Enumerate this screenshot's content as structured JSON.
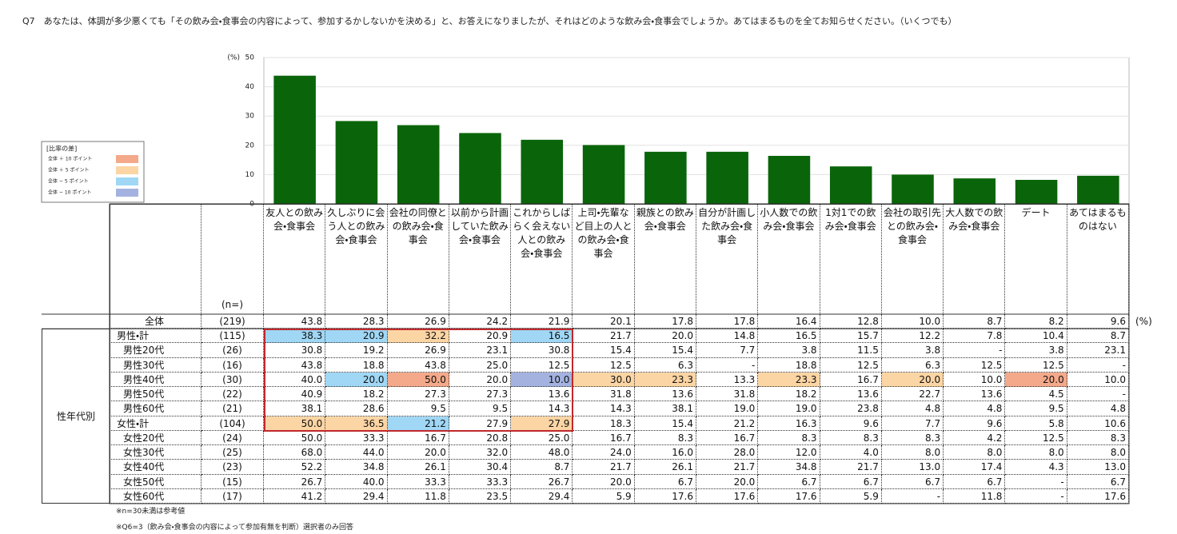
{
  "question": "Q7　あなたは、体調が多少悪くても「その飲み会・食事会の内容によって、参加するかしないかを決める」と、お答えになりましたが、それはどのような飲み会・食事会でしょうか。あてはまるものを全てお知らせください。（いくつでも）",
  "chart_data": {
    "type": "bar",
    "categories": [
      "友人との飲み会・食事会",
      "久しぶりに会う人との飲み会・食事会",
      "会社の同僚との飲み会・食事会",
      "以前から計画していた飲み会・食事会",
      "これからしばらく会えない人との飲み会・食事会",
      "上司・先輩など目上の人との飲み会・食事会",
      "親族との飲み会・食事会",
      "自分が計画した飲み会・食事会",
      "小人数での飲み会・食事会",
      "1対1での飲み会・食事会",
      "会社の取引先との飲み会・食事会",
      "大人数での飲み会・食事会",
      "デート",
      "あてはまるものはない"
    ],
    "values": [
      43.8,
      28.3,
      26.9,
      24.2,
      21.9,
      20.1,
      17.8,
      17.8,
      16.4,
      12.8,
      10.0,
      8.7,
      8.2,
      9.6
    ],
    "color": "#0a650a",
    "ylim": [
      0,
      50
    ],
    "yticks": [
      0,
      10,
      20,
      30,
      40,
      50
    ],
    "y_unit": "(%)",
    "grid": true
  },
  "legend": {
    "title": "[比率の差]",
    "items": [
      {
        "label": "全体 ＋ 10 ポイント",
        "color": "#f4a98a"
      },
      {
        "label": "全体 ＋ 5 ポイント",
        "color": "#fcd5a4"
      },
      {
        "label": "全体 − 5 ポイント",
        "color": "#9fd7f5"
      },
      {
        "label": "全体 − 10 ポイント",
        "color": "#a4b2e0"
      }
    ]
  },
  "table": {
    "n_header": "(n=)",
    "unit": "(%)",
    "overall": {
      "label": "全体",
      "n": "(219)",
      "values": [
        "43.8",
        "28.3",
        "26.9",
        "24.2",
        "21.9",
        "20.1",
        "17.8",
        "17.8",
        "16.4",
        "12.8",
        "10.0",
        "8.7",
        "8.2",
        "9.6"
      ]
    },
    "group_label": "性年代別",
    "groups": [
      {
        "total": {
          "label": "男性・計",
          "n": "(115)",
          "values": [
            "38.3",
            "20.9",
            "32.2",
            "20.9",
            "16.5",
            "21.7",
            "20.0",
            "14.8",
            "16.5",
            "15.7",
            "12.2",
            "7.8",
            "10.4",
            "8.7"
          ],
          "colors": [
            "#9fd7f5",
            "#9fd7f5",
            "#fcd5a4",
            null,
            "#9fd7f5",
            null,
            null,
            null,
            null,
            null,
            null,
            null,
            null,
            null
          ]
        },
        "rows": [
          {
            "label": "男性20代",
            "n": "(26)",
            "values": [
              "30.8",
              "19.2",
              "26.9",
              "23.1",
              "30.8",
              "15.4",
              "15.4",
              "7.7",
              "3.8",
              "11.5",
              "3.8",
              "-",
              "3.8",
              "23.1"
            ]
          },
          {
            "label": "男性30代",
            "n": "(16)",
            "values": [
              "43.8",
              "18.8",
              "43.8",
              "25.0",
              "12.5",
              "12.5",
              "6.3",
              "-",
              "18.8",
              "12.5",
              "6.3",
              "12.5",
              "12.5",
              "-"
            ]
          },
          {
            "label": "男性40代",
            "n": "(30)",
            "values": [
              "40.0",
              "20.0",
              "50.0",
              "20.0",
              "10.0",
              "30.0",
              "23.3",
              "13.3",
              "23.3",
              "16.7",
              "20.0",
              "10.0",
              "20.0",
              "10.0"
            ],
            "colors": [
              null,
              "#9fd7f5",
              "#f4a98a",
              null,
              "#a4b2e0",
              "#fcd5a4",
              "#fcd5a4",
              null,
              "#fcd5a4",
              null,
              "#fcd5a4",
              null,
              "#f4a98a",
              null
            ]
          },
          {
            "label": "男性50代",
            "n": "(22)",
            "values": [
              "40.9",
              "18.2",
              "27.3",
              "27.3",
              "13.6",
              "31.8",
              "13.6",
              "31.8",
              "18.2",
              "13.6",
              "22.7",
              "13.6",
              "4.5",
              "-"
            ]
          },
          {
            "label": "男性60代",
            "n": "(21)",
            "values": [
              "38.1",
              "28.6",
              "9.5",
              "9.5",
              "14.3",
              "14.3",
              "38.1",
              "19.0",
              "19.0",
              "23.8",
              "4.8",
              "4.8",
              "9.5",
              "4.8"
            ]
          }
        ]
      },
      {
        "total": {
          "label": "女性・計",
          "n": "(104)",
          "values": [
            "50.0",
            "36.5",
            "21.2",
            "27.9",
            "27.9",
            "18.3",
            "15.4",
            "21.2",
            "16.3",
            "9.6",
            "7.7",
            "9.6",
            "5.8",
            "10.6"
          ],
          "colors": [
            "#fcd5a4",
            "#fcd5a4",
            "#9fd7f5",
            null,
            "#fcd5a4",
            null,
            null,
            null,
            null,
            null,
            null,
            null,
            null,
            null
          ]
        },
        "rows": [
          {
            "label": "女性20代",
            "n": "(24)",
            "values": [
              "50.0",
              "33.3",
              "16.7",
              "20.8",
              "25.0",
              "16.7",
              "8.3",
              "16.7",
              "8.3",
              "8.3",
              "8.3",
              "4.2",
              "12.5",
              "8.3"
            ]
          },
          {
            "label": "女性30代",
            "n": "(25)",
            "values": [
              "68.0",
              "44.0",
              "20.0",
              "32.0",
              "48.0",
              "24.0",
              "16.0",
              "28.0",
              "12.0",
              "4.0",
              "8.0",
              "8.0",
              "8.0",
              "8.0"
            ]
          },
          {
            "label": "女性40代",
            "n": "(23)",
            "values": [
              "52.2",
              "34.8",
              "26.1",
              "30.4",
              "8.7",
              "21.7",
              "26.1",
              "21.7",
              "34.8",
              "21.7",
              "13.0",
              "17.4",
              "4.3",
              "13.0"
            ]
          },
          {
            "label": "女性50代",
            "n": "(15)",
            "values": [
              "26.7",
              "40.0",
              "33.3",
              "33.3",
              "26.7",
              "20.0",
              "6.7",
              "20.0",
              "6.7",
              "6.7",
              "6.7",
              "6.7",
              "-",
              "6.7"
            ]
          },
          {
            "label": "女性60代",
            "n": "(17)",
            "values": [
              "41.2",
              "29.4",
              "11.8",
              "23.5",
              "29.4",
              "5.9",
              "17.6",
              "17.6",
              "17.6",
              "5.9",
              "-",
              "11.8",
              "-",
              "17.6"
            ]
          }
        ]
      }
    ]
  },
  "footnotes": [
    "※n=30未満は参考値",
    "※Q6=3（飲み会・食事会の内容によって参加有無を判断）選択者のみ回答"
  ]
}
